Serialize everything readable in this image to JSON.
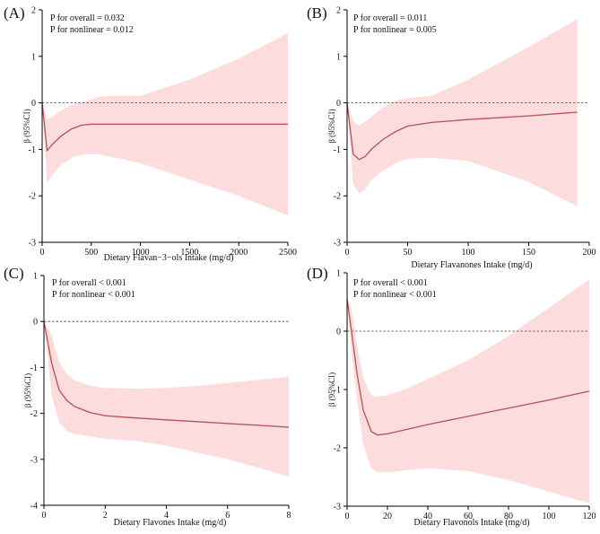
{
  "figure": {
    "type": "multi-panel RCS plot"
  },
  "colors": {
    "band": "#fcdcdc",
    "line": "#b45252",
    "ref": "#444444",
    "axis": "#000000"
  },
  "chart_data": [
    {
      "id": "A",
      "type": "line",
      "letter": "(A)",
      "annotations": [
        "P for overall = 0.032",
        "P for nonlinear = 0.012"
      ],
      "xlabel": "Dietary Flavan−3−ols Intake (mg/d)",
      "ylabel": "β (95%CI)",
      "xlim": [
        0,
        2500
      ],
      "ylim": [
        -3,
        2
      ],
      "xticks": [
        0,
        500,
        1000,
        1500,
        2000,
        2500
      ],
      "yticks": [
        -3,
        -2,
        -1,
        0,
        1,
        2
      ],
      "ref_line": 0,
      "x": [
        0,
        50,
        100,
        200,
        300,
        400,
        500,
        600,
        800,
        1000,
        1500,
        2000,
        2500
      ],
      "y": [
        0,
        -1.03,
        -0.9,
        -0.7,
        -0.56,
        -0.48,
        -0.46,
        -0.46,
        -0.46,
        -0.46,
        -0.46,
        -0.46,
        -0.46
      ],
      "lower": [
        0,
        -1.72,
        -1.55,
        -1.32,
        -1.18,
        -1.12,
        -1.1,
        -1.12,
        -1.2,
        -1.3,
        -1.65,
        -2.0,
        -2.42
      ],
      "upper": [
        0,
        -0.35,
        -0.3,
        -0.15,
        -0.05,
        0.02,
        0.08,
        0.14,
        0.15,
        0.15,
        0.5,
        0.95,
        1.5
      ]
    },
    {
      "id": "B",
      "type": "line",
      "letter": "(B)",
      "annotations": [
        "P for overall = 0.011",
        "P for nonlinear = 0.005"
      ],
      "xlabel": "Dietary Flavanones Intake (mg/d)",
      "ylabel": "β (95%CI)",
      "xlim": [
        0,
        200
      ],
      "ylim": [
        -3,
        2
      ],
      "xticks": [
        0,
        50,
        100,
        150,
        200
      ],
      "yticks": [
        -3,
        -2,
        -1,
        0,
        1,
        2
      ],
      "ref_line": 0,
      "x": [
        0,
        5,
        10,
        15,
        20,
        30,
        40,
        50,
        70,
        100,
        150,
        190
      ],
      "y": [
        0,
        -1.1,
        -1.22,
        -1.15,
        -1.0,
        -0.78,
        -0.62,
        -0.5,
        -0.42,
        -0.36,
        -0.28,
        -0.2
      ],
      "lower": [
        0,
        -1.75,
        -1.95,
        -1.85,
        -1.65,
        -1.45,
        -1.3,
        -1.2,
        -1.18,
        -1.25,
        -1.7,
        -2.22
      ],
      "upper": [
        0,
        -0.4,
        -0.48,
        -0.4,
        -0.3,
        -0.1,
        0.05,
        0.1,
        0.15,
        0.5,
        1.2,
        1.8
      ]
    },
    {
      "id": "C",
      "type": "line",
      "letter": "(C)",
      "annotations": [
        "P for overall < 0.001",
        "P for nonlinear < 0.001"
      ],
      "xlabel": "Dietary Flavones Intake (mg/d)",
      "ylabel": "β (95%CI)",
      "xlim": [
        0,
        8
      ],
      "ylim": [
        -4,
        1
      ],
      "xticks": [
        0,
        2,
        4,
        6,
        8
      ],
      "yticks": [
        -4,
        -3,
        -2,
        -1,
        0,
        1
      ],
      "ref_line": 0,
      "x": [
        0,
        0.25,
        0.5,
        0.75,
        1,
        1.5,
        2,
        3,
        4,
        5,
        6,
        7,
        8
      ],
      "y": [
        0,
        -0.9,
        -1.5,
        -1.72,
        -1.85,
        -1.98,
        -2.05,
        -2.1,
        -2.14,
        -2.18,
        -2.22,
        -2.26,
        -2.3
      ],
      "lower": [
        0,
        -1.6,
        -2.2,
        -2.38,
        -2.45,
        -2.5,
        -2.55,
        -2.6,
        -2.7,
        -2.85,
        -3.0,
        -3.18,
        -3.38
      ],
      "upper": [
        0,
        -0.3,
        -0.9,
        -1.15,
        -1.28,
        -1.4,
        -1.45,
        -1.46,
        -1.45,
        -1.4,
        -1.34,
        -1.27,
        -1.2
      ]
    },
    {
      "id": "D",
      "type": "line",
      "letter": "(D)",
      "annotations": [
        "P for overall < 0.001",
        "P for nonlinear < 0.001"
      ],
      "xlabel": "Dietary Flavonols Intake (mg/d)",
      "ylabel": "β (95%CI)",
      "xlim": [
        0,
        120
      ],
      "ylim": [
        -3,
        1
      ],
      "xticks": [
        0,
        20,
        40,
        60,
        80,
        100,
        120
      ],
      "yticks": [
        -3,
        -2,
        -1,
        0,
        1
      ],
      "ref_line": 0,
      "x": [
        0,
        2,
        5,
        8,
        12,
        15,
        20,
        30,
        40,
        60,
        80,
        100,
        120
      ],
      "y": [
        0.55,
        0.05,
        -0.75,
        -1.35,
        -1.72,
        -1.78,
        -1.76,
        -1.68,
        -1.6,
        -1.46,
        -1.32,
        -1.18,
        -1.03
      ],
      "lower": [
        0.55,
        -0.3,
        -1.2,
        -1.95,
        -2.35,
        -2.42,
        -2.42,
        -2.38,
        -2.35,
        -2.4,
        -2.55,
        -2.75,
        -2.95
      ],
      "upper": [
        0.55,
        0.4,
        -0.25,
        -0.8,
        -1.1,
        -1.12,
        -1.1,
        -0.98,
        -0.82,
        -0.5,
        -0.08,
        0.4,
        0.88
      ]
    }
  ]
}
